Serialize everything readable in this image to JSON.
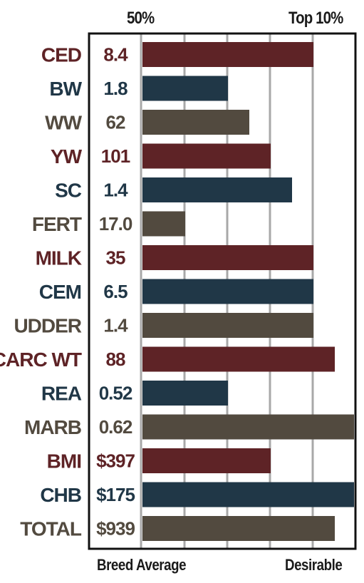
{
  "colors": {
    "maroon": "#5e2326",
    "navy": "#203747",
    "taupe": "#524a3f",
    "grid": "#a8a8a8",
    "frame": "#111111"
  },
  "header": {
    "left_label": "50%",
    "right_label": "Top 10%"
  },
  "footer": {
    "left_label": "Breed Average",
    "right_label": "Desirable"
  },
  "chart_data": {
    "type": "bar",
    "orientation": "horizontal",
    "xlim": [
      0,
      5
    ],
    "grid": true,
    "categories": [
      "CED",
      "BW",
      "WW",
      "YW",
      "SC",
      "FERT",
      "MILK",
      "CEM",
      "UDDER",
      "CARC WT",
      "REA",
      "MARB",
      "BMI",
      "CHB",
      "TOTAL"
    ],
    "value_labels": [
      "8.4",
      "1.8",
      "62",
      "101",
      "1.4",
      "17.0",
      "35",
      "6.5",
      "1.4",
      "88",
      "0.52",
      "0.62",
      "$397",
      "$175",
      "$939"
    ],
    "values": [
      4.0,
      2.0,
      2.5,
      3.0,
      3.5,
      1.0,
      4.0,
      4.0,
      4.0,
      4.5,
      2.0,
      4.95,
      3.0,
      4.95,
      4.5
    ],
    "color_keys": [
      "maroon",
      "navy",
      "taupe",
      "maroon",
      "navy",
      "taupe",
      "maroon",
      "navy",
      "taupe",
      "maroon",
      "navy",
      "taupe",
      "maroon",
      "navy",
      "taupe"
    ]
  }
}
